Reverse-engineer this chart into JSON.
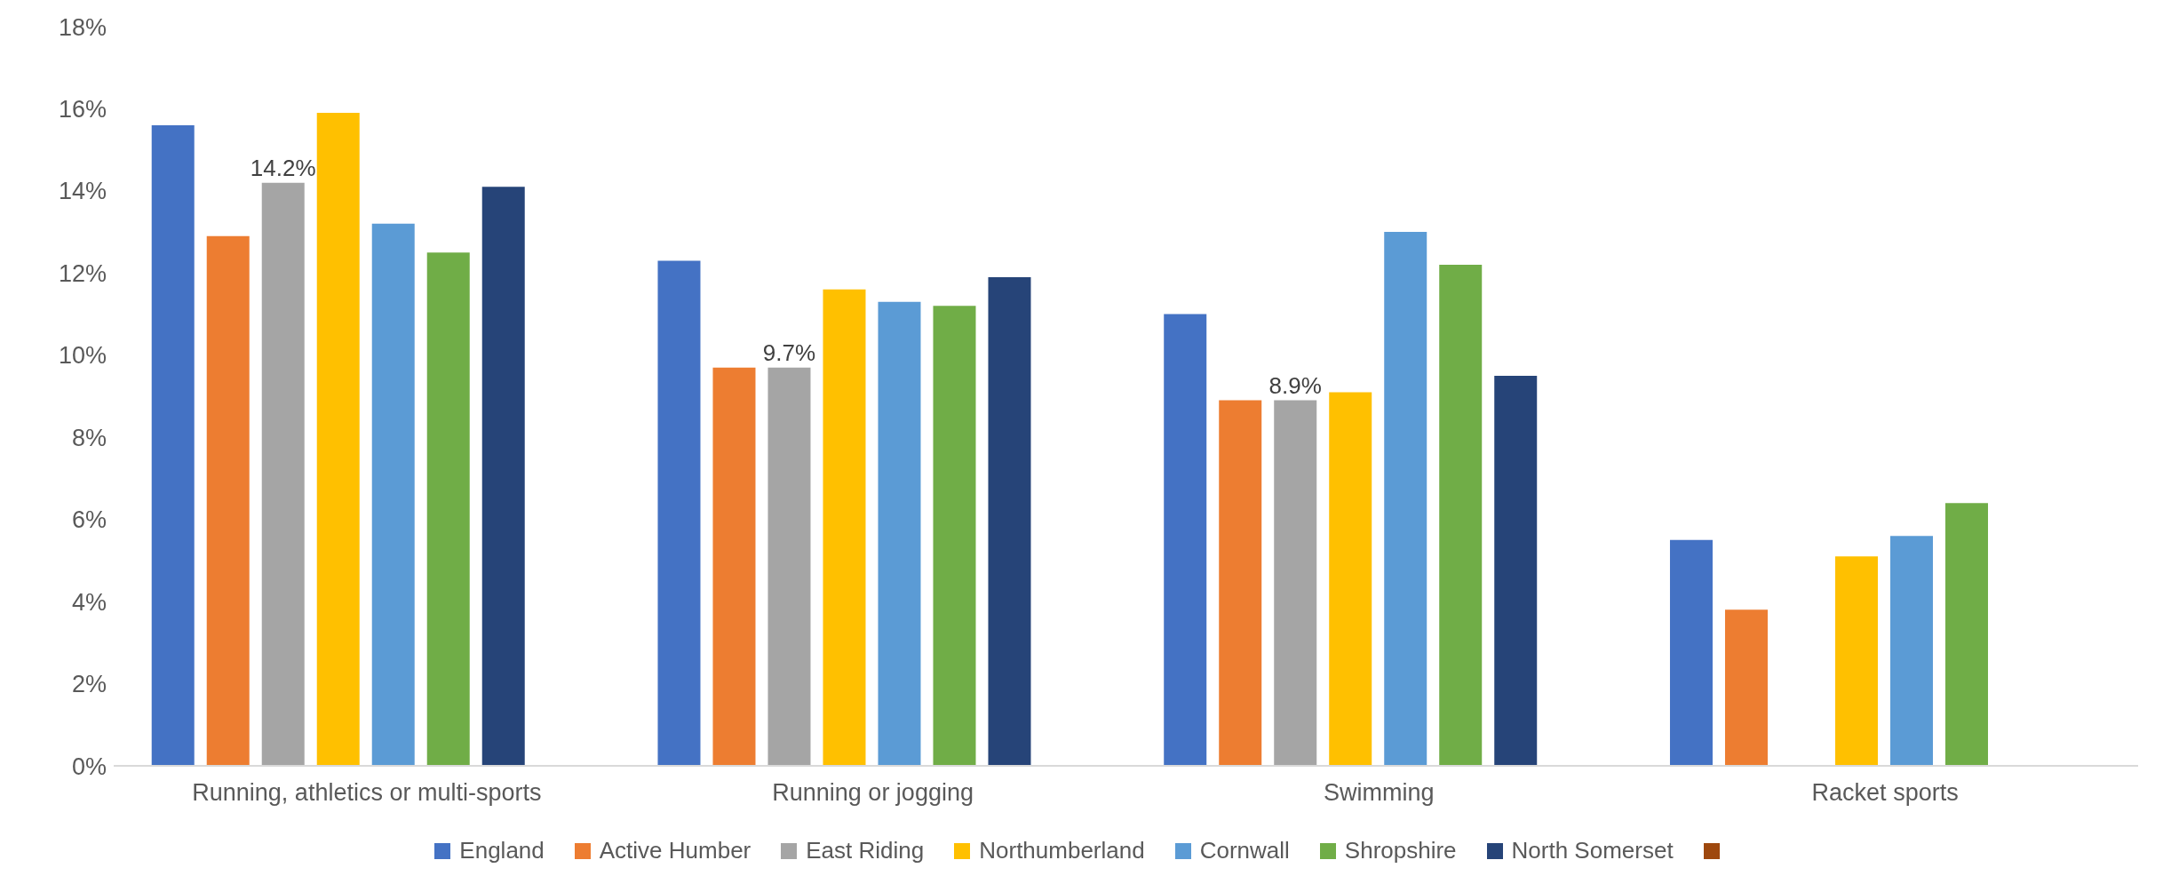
{
  "chart_data": {
    "type": "bar",
    "categories": [
      "Running, athletics or multi-sports",
      "Running or jogging",
      "Swimming",
      "Racket sports"
    ],
    "series": [
      {
        "name": "England",
        "color": "#4472c4",
        "values": [
          15.6,
          12.3,
          11.0,
          5.5
        ]
      },
      {
        "name": "Active Humber",
        "color": "#ed7d31",
        "values": [
          12.9,
          9.7,
          8.9,
          3.8
        ]
      },
      {
        "name": "East Riding",
        "color": "#a5a5a5",
        "values": [
          14.2,
          9.7,
          8.9,
          null
        ],
        "value_labels": [
          "14.2%",
          "9.7%",
          "8.9%",
          null
        ]
      },
      {
        "name": "Northumberland",
        "color": "#ffc000",
        "values": [
          15.9,
          11.6,
          9.1,
          5.1
        ]
      },
      {
        "name": "Cornwall",
        "color": "#5b9bd5",
        "values": [
          13.2,
          11.3,
          13.0,
          5.6
        ]
      },
      {
        "name": "Shropshire",
        "color": "#70ad47",
        "values": [
          12.5,
          11.2,
          12.2,
          6.4
        ]
      },
      {
        "name": "North Somerset",
        "color": "#264478",
        "values": [
          14.1,
          11.9,
          9.5,
          null
        ]
      },
      {
        "color": "#9e480e",
        "values": [
          null,
          null,
          null,
          null
        ]
      }
    ],
    "ylim": [
      0,
      18
    ],
    "yticks": [
      {
        "value": 0,
        "label": "0%"
      },
      {
        "value": 2,
        "label": "2%"
      },
      {
        "value": 4,
        "label": "4%"
      },
      {
        "value": 6,
        "label": "6%"
      },
      {
        "value": 8,
        "label": "8%"
      },
      {
        "value": 10,
        "label": "10%"
      },
      {
        "value": 12,
        "label": "12%"
      },
      {
        "value": 14,
        "label": "14%"
      },
      {
        "value": 16,
        "label": "16%"
      },
      {
        "value": 18,
        "label": "18%"
      }
    ],
    "grid": false,
    "legend": "bottom"
  }
}
